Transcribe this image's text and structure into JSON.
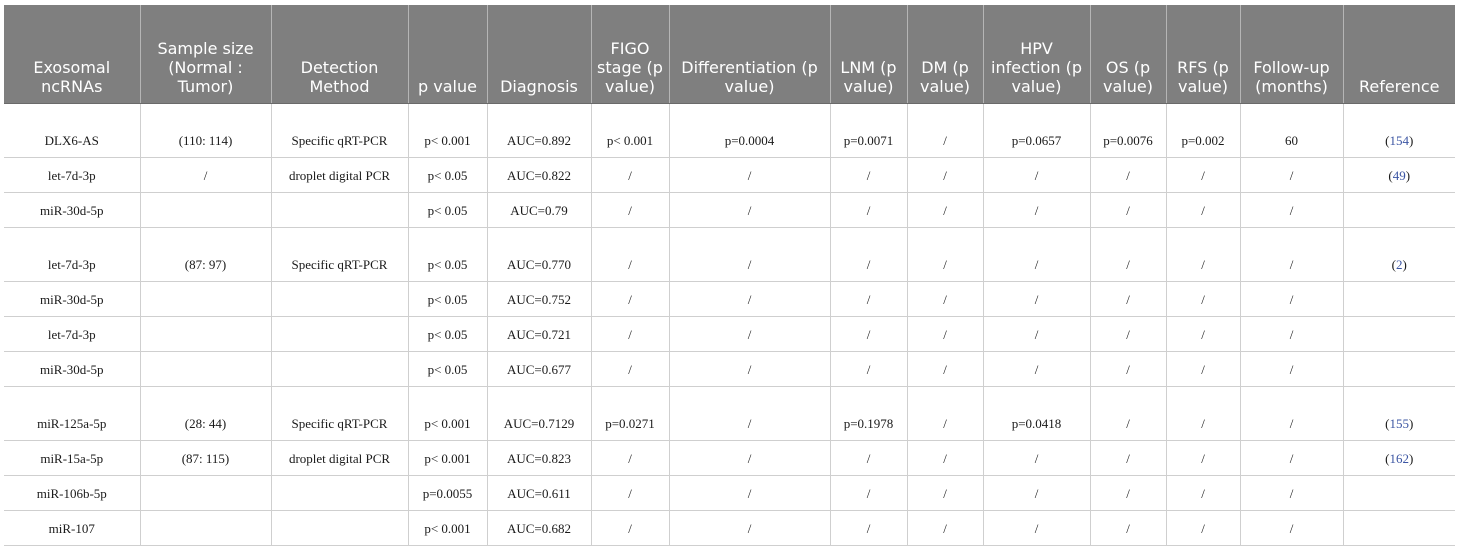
{
  "headers": [
    "Exosomal ncRNAs",
    "Sample size (Normal : Tumor)",
    "Detection Method",
    "p value",
    "Diagnosis",
    "FIGO stage (p value)",
    "Differentiation (p value)",
    "LNM (p value)",
    "DM (p value)",
    "HPV infection (p value)",
    "OS (p value)",
    "RFS (p value)",
    "Follow-up (months)",
    "Reference"
  ],
  "rows": [
    {
      "tall": true,
      "cells": [
        "DLX6-AS",
        "(110: 114)",
        "Specific qRT-PCR",
        "p< 0.001",
        "AUC=0.892",
        "p< 0.001",
        "p=0.0004",
        "p=0.0071",
        "/",
        "p=0.0657",
        "p=0.0076",
        "p=0.002",
        "60",
        ""
      ],
      "ref": "154"
    },
    {
      "tall": false,
      "cells": [
        "let-7d-3p",
        "/",
        "droplet digital PCR",
        "p< 0.05",
        "AUC=0.822",
        "/",
        "/",
        "/",
        "/",
        "/",
        "/",
        "/",
        "/",
        ""
      ],
      "ref": "49"
    },
    {
      "tall": false,
      "cells": [
        "miR-30d-5p",
        "",
        "",
        "p< 0.05",
        "AUC=0.79",
        "/",
        "/",
        "/",
        "/",
        "/",
        "/",
        "/",
        "/",
        ""
      ],
      "ref": ""
    },
    {
      "tall": true,
      "cells": [
        "let-7d-3p",
        "(87: 97)",
        "Specific qRT-PCR",
        "p< 0.05",
        "AUC=0.770",
        "/",
        "/",
        "/",
        "/",
        "/",
        "/",
        "/",
        "/",
        ""
      ],
      "ref": "2"
    },
    {
      "tall": false,
      "cells": [
        "miR-30d-5p",
        "",
        "",
        "p< 0.05",
        "AUC=0.752",
        "/",
        "/",
        "/",
        "/",
        "/",
        "/",
        "/",
        "/",
        ""
      ],
      "ref": ""
    },
    {
      "tall": false,
      "cells": [
        "let-7d-3p",
        "",
        "",
        "p< 0.05",
        "AUC=0.721",
        "/",
        "/",
        "/",
        "/",
        "/",
        "/",
        "/",
        "/",
        ""
      ],
      "ref": ""
    },
    {
      "tall": false,
      "cells": [
        "miR-30d-5p",
        "",
        "",
        "p< 0.05",
        "AUC=0.677",
        "/",
        "/",
        "/",
        "/",
        "/",
        "/",
        "/",
        "/",
        ""
      ],
      "ref": ""
    },
    {
      "tall": true,
      "cells": [
        "miR-125a-5p",
        "(28: 44)",
        "Specific qRT-PCR",
        "p< 0.001",
        "AUC=0.7129",
        "p=0.0271",
        "/",
        "p=0.1978",
        "/",
        "p=0.0418",
        "/",
        "/",
        "/",
        ""
      ],
      "ref": "155"
    },
    {
      "tall": false,
      "cells": [
        "miR-15a-5p",
        "(87: 115)",
        "droplet digital PCR",
        "p< 0.001",
        "AUC=0.823",
        "/",
        "/",
        "/",
        "/",
        "/",
        "/",
        "/",
        "/",
        ""
      ],
      "ref": "162"
    },
    {
      "tall": false,
      "cells": [
        "miR-106b-5p",
        "",
        "",
        "p=0.0055",
        "AUC=0.611",
        "/",
        "/",
        "/",
        "/",
        "/",
        "/",
        "/",
        "/",
        ""
      ],
      "ref": ""
    },
    {
      "tall": false,
      "cells": [
        "miR-107",
        "",
        "",
        "p< 0.001",
        "AUC=0.682",
        "/",
        "/",
        "/",
        "/",
        "/",
        "/",
        "/",
        "/",
        ""
      ],
      "ref": ""
    }
  ],
  "colors": {
    "header_bg": "#7f7f7f",
    "header_text": "#ffffff",
    "ref_link": "#3b55a3"
  }
}
